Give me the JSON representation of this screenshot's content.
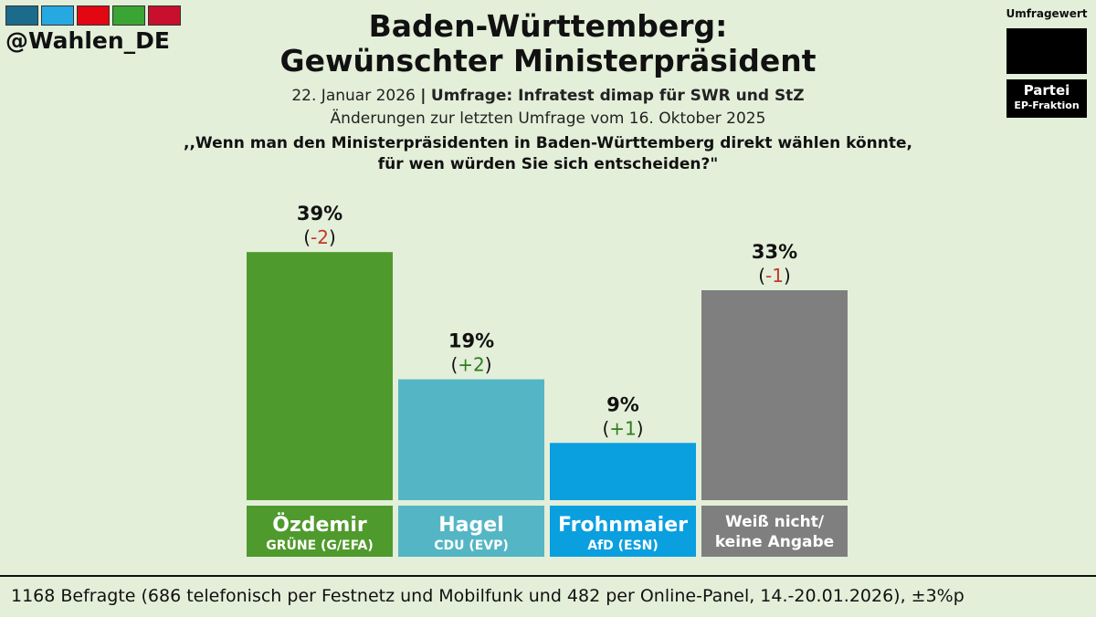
{
  "handle": "@Wahlen_DE",
  "logo_colors": [
    "#1a6b8c",
    "#26a9e0",
    "#e30613",
    "#3aa535",
    "#c8102e"
  ],
  "title_line1": "Baden-Württemberg:",
  "title_line2": "Gewünschter Ministerpräsident",
  "date": "22. Januar 2026",
  "separator": "|",
  "institute": "Umfrage: Infratest dimap für SWR und StZ",
  "change_note": "Änderungen zur letzten Umfrage vom 16. Oktober 2025",
  "question_line1": ",,Wenn man den Ministerpräsidenten in Baden-Württemberg direkt wählen könnte,",
  "question_line2": "für wen würden Sie sich entscheiden?\"",
  "legend": {
    "title": "Umfragewert",
    "party": "Partei",
    "fraction": "EP-Fraktion"
  },
  "footer": "1168 Befragte (686 telefonisch per Festnetz und Mobilfunk und 482 per Online-Panel, 14.-20.01.2026), ±3%p",
  "chart_data": {
    "type": "bar",
    "unit": "%",
    "ylim": [
      0,
      100
    ],
    "categories": [
      "Özdemir",
      "Hagel",
      "Frohnmaier",
      "Weiß nicht/ keine Angabe"
    ],
    "values": [
      39,
      19,
      9,
      33
    ],
    "changes": [
      "-2",
      "+2",
      "+1",
      "-1"
    ],
    "parties": [
      "GRÜNE (G/EFA)",
      "CDU (EVP)",
      "AfD (ESN)",
      ""
    ],
    "label_lines": [
      [
        "Özdemir"
      ],
      [
        "Hagel"
      ],
      [
        "Frohnmaier"
      ],
      [
        "Weiß nicht/",
        "keine Angabe"
      ]
    ],
    "colors": [
      "#4f9a2c",
      "#54b6c4",
      "#0a9fdf",
      "#7f7f7f"
    ],
    "change_colors": {
      "negative": "#c0392b",
      "positive": "#2e7d1f"
    }
  }
}
